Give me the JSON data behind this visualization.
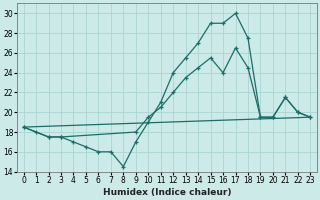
{
  "xlabel": "Humidex (Indice chaleur)",
  "background_color": "#cceae8",
  "grid_color": "#aad4d0",
  "line_color": "#1a6e68",
  "xlim": [
    -0.5,
    23.5
  ],
  "ylim": [
    14,
    31
  ],
  "xticks": [
    0,
    1,
    2,
    3,
    4,
    5,
    6,
    7,
    8,
    9,
    10,
    11,
    12,
    13,
    14,
    15,
    16,
    17,
    18,
    19,
    20,
    21,
    22,
    23
  ],
  "yticks": [
    14,
    16,
    18,
    20,
    22,
    24,
    26,
    28,
    30
  ],
  "series": [
    {
      "x": [
        0,
        1,
        2,
        3,
        4,
        5,
        6,
        7,
        8,
        9,
        10,
        11,
        12,
        13,
        14,
        15,
        16,
        17,
        18,
        19,
        20,
        21,
        22,
        23
      ],
      "y": [
        18.5,
        18.0,
        17.5,
        17.5,
        17.0,
        16.5,
        16.0,
        16.0,
        14.5,
        17.0,
        19.0,
        21.0,
        24.0,
        25.5,
        27.0,
        29.0,
        29.0,
        30.0,
        27.5,
        19.5,
        19.5,
        21.5,
        20.0,
        19.5
      ],
      "marker": true
    },
    {
      "x": [
        0,
        23
      ],
      "y": [
        18.5,
        19.5
      ],
      "marker": false
    },
    {
      "x": [
        0,
        2,
        3,
        9,
        10,
        11,
        12,
        13,
        14,
        15,
        16,
        17,
        18,
        19,
        20,
        21,
        22,
        23
      ],
      "y": [
        18.5,
        17.5,
        17.5,
        18.0,
        19.5,
        20.5,
        22.0,
        23.5,
        24.5,
        25.5,
        24.0,
        26.5,
        24.5,
        19.5,
        19.5,
        21.5,
        20.0,
        19.5
      ],
      "marker": true
    }
  ]
}
